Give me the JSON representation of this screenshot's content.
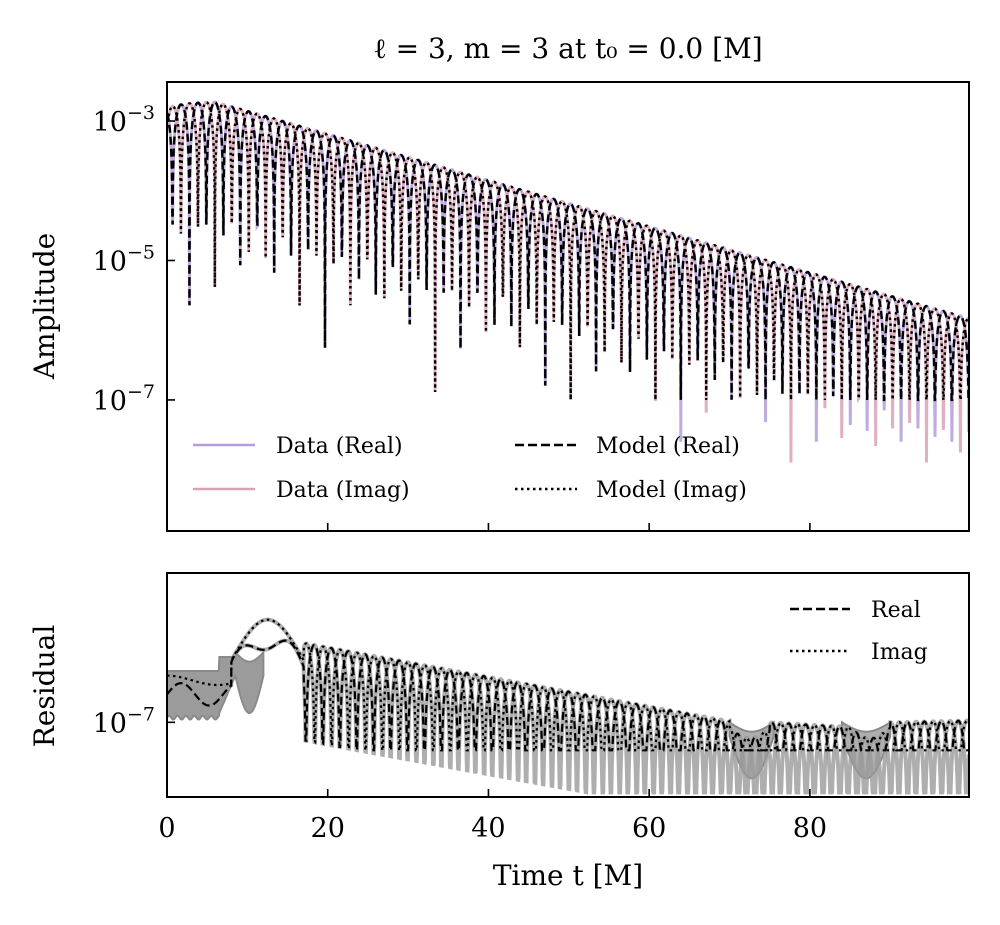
{
  "chart_data": [
    {
      "panel": "amplitude",
      "type": "line",
      "title": "ℓ = 3, m = 3 at t₀ = 0.0 [M]",
      "xlabel": "",
      "ylabel": "Amplitude",
      "xlim": [
        0,
        99.8
      ],
      "ylim_log10": [
        -8.88,
        -2.44
      ],
      "yscale": "log",
      "yticks": [
        {
          "exp": -3,
          "label_base": "10",
          "label_exp": "−3"
        },
        {
          "exp": -5,
          "label_base": "10",
          "label_exp": "−5"
        },
        {
          "exp": -7,
          "label_base": "10",
          "label_exp": "−7"
        }
      ],
      "xticks": [
        0,
        20,
        40,
        60,
        80
      ],
      "grid": false,
      "legend": {
        "placement": "lower-left",
        "columns": 2,
        "entries": [
          {
            "label": "Data (Real)",
            "style": "solid",
            "color": "#b39ddb"
          },
          {
            "label": "Data (Imag)",
            "style": "solid",
            "color": "#d9a3b5"
          },
          {
            "label": "Model (Real)",
            "style": "dashed",
            "color": "#000000"
          },
          {
            "label": "Model (Imag)",
            "style": "dotted",
            "color": "#000000"
          }
        ]
      },
      "model": {
        "description": "|Re| and |Im| of damped sinusoid A·exp(-t/tau)·exp(i(omega t + phi))",
        "amplitude_peak": 0.0019,
        "tau": 13.1,
        "omega": 0.745,
        "phase": 0.55,
        "t_rise": 5.0
      },
      "series": [
        {
          "name": "Data (Real)",
          "color": "#b39ddb",
          "style": "solid"
        },
        {
          "name": "Data (Imag)",
          "color": "#d9a3b5",
          "style": "solid"
        },
        {
          "name": "Model (Real)",
          "color": "#000000",
          "style": "dashed"
        },
        {
          "name": "Model (Imag)",
          "color": "#000000",
          "style": "dotted"
        }
      ]
    },
    {
      "panel": "residual",
      "type": "line",
      "title": "",
      "xlabel": "Time t [M]",
      "ylabel": "Residual",
      "xlim": [
        0,
        99.8
      ],
      "ylim_log10": [
        -7.8,
        -5.4
      ],
      "yscale": "log",
      "yticks": [
        {
          "exp": -7,
          "label_base": "10",
          "label_exp": "−7"
        }
      ],
      "xticks": [
        0,
        20,
        40,
        60,
        80
      ],
      "grid": false,
      "legend": {
        "placement": "top-right",
        "columns": 1,
        "entries": [
          {
            "label": "Real",
            "style": "dashed",
            "color": "#000000"
          },
          {
            "label": "Imag",
            "style": "dotted",
            "color": "#000000"
          }
        ]
      },
      "band_color": "#7a7a7a",
      "series": [
        {
          "name": "Real",
          "color": "#000000",
          "style": "dashed"
        },
        {
          "name": "Imag",
          "color": "#000000",
          "style": "dotted"
        }
      ]
    }
  ]
}
